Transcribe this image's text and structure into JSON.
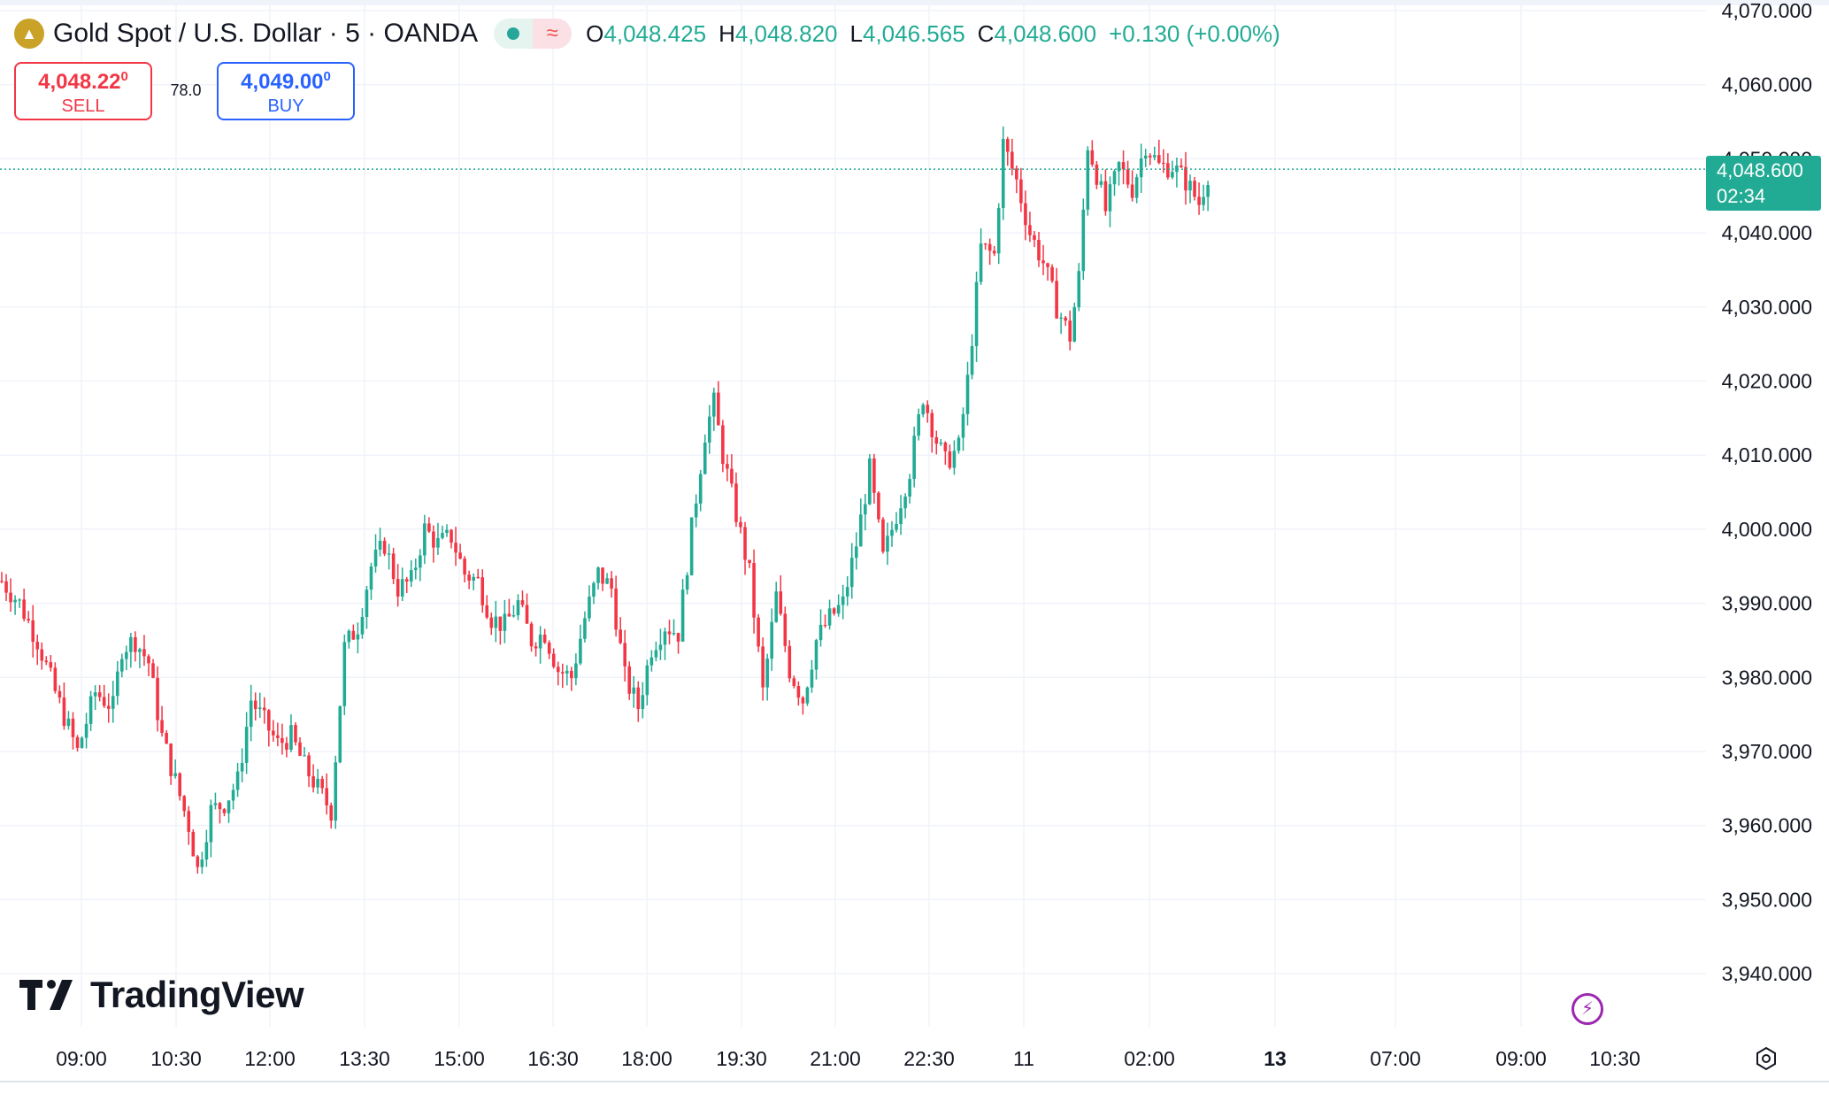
{
  "header": {
    "symbol_title": "Gold Spot / U.S. Dollar · 5 · OANDA",
    "ohlc": [
      {
        "k": "O",
        "v": "4,048.425"
      },
      {
        "k": "H",
        "v": "4,048.820"
      },
      {
        "k": "L",
        "v": "4,046.565"
      },
      {
        "k": "C",
        "v": "4,048.600"
      },
      {
        "k": "",
        "v": "+0.130 (+0.00%)"
      }
    ]
  },
  "trade": {
    "sell_price": "4,048.22",
    "sell_sup": "0",
    "sell_label": "SELL",
    "spread": "78.0",
    "buy_price": "4,049.00",
    "buy_sup": "0",
    "buy_label": "BUY"
  },
  "price_tag": {
    "price": "4,048.600",
    "countdown": "02:34"
  },
  "brand": {
    "name": "TradingView"
  },
  "colors": {
    "up": "#22ab94",
    "down": "#f23645",
    "grid": "#f0f3fa",
    "axis_text": "#131722"
  },
  "chart_data": {
    "type": "candlestick",
    "y_ticks": [
      "4,070.000",
      "4,060.000",
      "4,050.000",
      "4,040.000",
      "4,030.000",
      "4,020.000",
      "4,010.000",
      "4,000.000",
      "3,990.000",
      "3,980.000",
      "3,970.000",
      "3,960.000",
      "3,950.000",
      "3,940.000"
    ],
    "y_tick_values": [
      4070,
      4060,
      4050,
      4040,
      4030,
      4020,
      4010,
      4000,
      3990,
      3980,
      3970,
      3960,
      3950,
      3940
    ],
    "x_ticks": [
      "09:00",
      "10:30",
      "12:00",
      "13:30",
      "15:00",
      "16:30",
      "18:00",
      "19:30",
      "21:00",
      "22:30",
      "11",
      "02:00",
      "13",
      "07:00",
      "09:00",
      "10:30"
    ],
    "bold_x_ticks": [
      "13"
    ],
    "ylim": [
      3933,
      4071
    ],
    "last_price": 4048.6,
    "grid": true,
    "path_points": [
      [
        0,
        3993
      ],
      [
        4,
        3990
      ],
      [
        8,
        3985
      ],
      [
        12,
        3978
      ],
      [
        17,
        3970
      ],
      [
        21,
        3978
      ],
      [
        25,
        3976
      ],
      [
        27,
        3984
      ],
      [
        30,
        3985
      ],
      [
        33,
        3982
      ],
      [
        36,
        3972
      ],
      [
        39,
        3966
      ],
      [
        42,
        3960
      ],
      [
        44,
        3954
      ],
      [
        47,
        3962
      ],
      [
        50,
        3963
      ],
      [
        53,
        3966
      ],
      [
        56,
        3977
      ],
      [
        59,
        3974
      ],
      [
        62,
        3971
      ],
      [
        65,
        3972
      ],
      [
        68,
        3968
      ],
      [
        71,
        3965
      ],
      [
        74,
        3962
      ],
      [
        77,
        3984
      ],
      [
        80,
        3987
      ],
      [
        83,
        3995
      ],
      [
        86,
        3998
      ],
      [
        89,
        3992
      ],
      [
        92,
        3993
      ],
      [
        95,
        4000
      ],
      [
        98,
        3998
      ],
      [
        101,
        3999
      ],
      [
        104,
        3994
      ],
      [
        107,
        3993
      ],
      [
        110,
        3988
      ],
      [
        113,
        3987
      ],
      [
        116,
        3990
      ],
      [
        119,
        3985
      ],
      [
        122,
        3986
      ],
      [
        125,
        3981
      ],
      [
        128,
        3980
      ],
      [
        131,
        3988
      ],
      [
        134,
        3994
      ],
      [
        137,
        3992
      ],
      [
        140,
        3980
      ],
      [
        143,
        3976
      ],
      [
        146,
        3984
      ],
      [
        149,
        3987
      ],
      [
        152,
        3986
      ],
      [
        155,
        4000
      ],
      [
        158,
        4013
      ],
      [
        160,
        4017
      ],
      [
        162,
        4010
      ],
      [
        165,
        4002
      ],
      [
        168,
        3994
      ],
      [
        171,
        3978
      ],
      [
        174,
        3991
      ],
      [
        177,
        3981
      ],
      [
        180,
        3977
      ],
      [
        183,
        3985
      ],
      [
        186,
        3988
      ],
      [
        189,
        3990
      ],
      [
        192,
        3998
      ],
      [
        195,
        4008
      ],
      [
        198,
        3996
      ],
      [
        201,
        4002
      ],
      [
        204,
        4008
      ],
      [
        207,
        4018
      ],
      [
        210,
        4012
      ],
      [
        212,
        4009
      ],
      [
        215,
        4011
      ],
      [
        217,
        4020
      ],
      [
        220,
        4038
      ],
      [
        223,
        4037
      ],
      [
        225,
        4052
      ],
      [
        228,
        4047
      ],
      [
        231,
        4040
      ],
      [
        234,
        4036
      ],
      [
        237,
        4030
      ],
      [
        240,
        4026
      ],
      [
        242,
        4034
      ],
      [
        244,
        4052
      ],
      [
        246,
        4048
      ],
      [
        248,
        4043
      ],
      [
        251,
        4049
      ],
      [
        254,
        4046
      ],
      [
        257,
        4052
      ],
      [
        260,
        4049
      ],
      [
        263,
        4049
      ],
      [
        266,
        4047
      ],
      [
        269,
        4044
      ],
      [
        271,
        4048
      ]
    ]
  }
}
